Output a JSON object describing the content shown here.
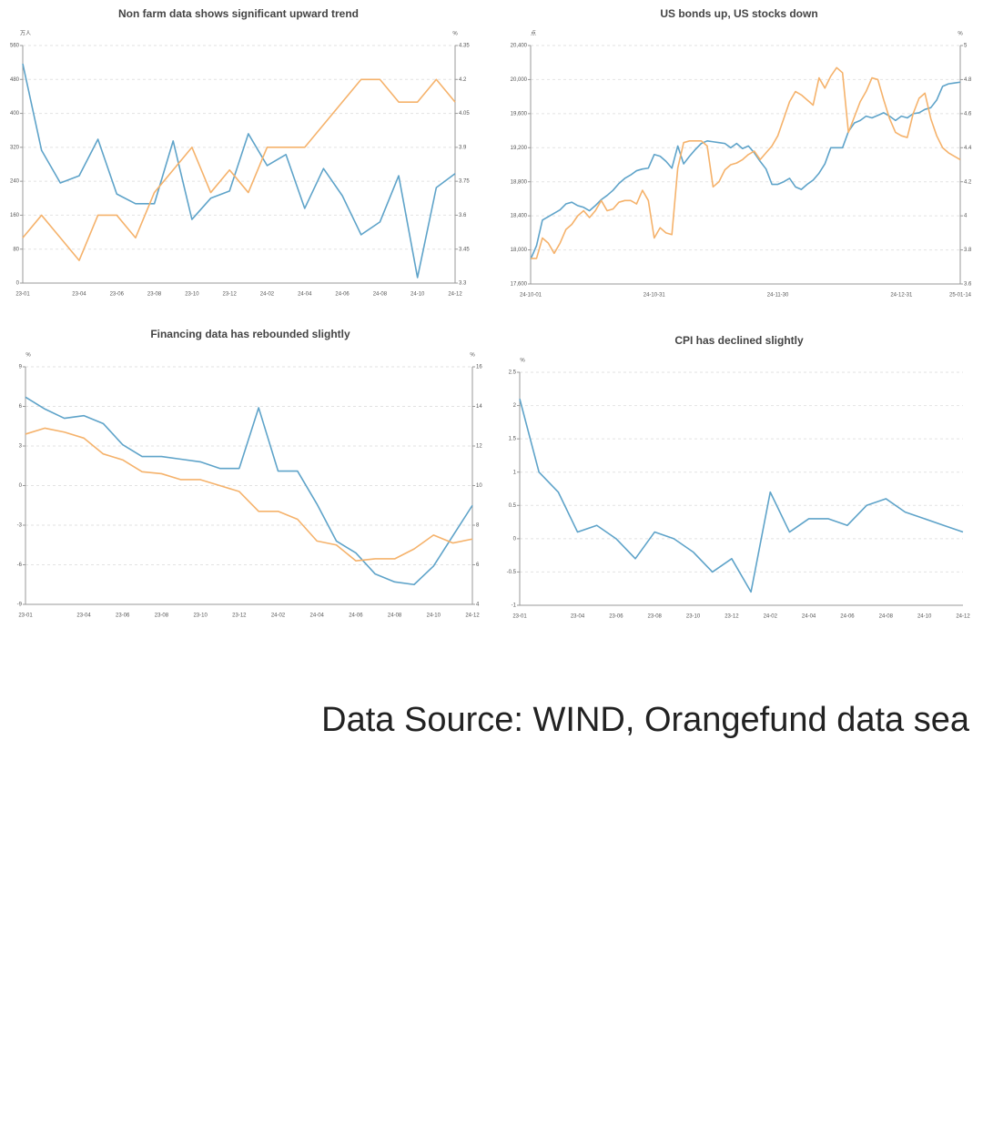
{
  "chart_data": [
    {
      "type": "line",
      "title": "Non farm data shows significant upward trend",
      "y_unit": "万人",
      "y2_unit": "%",
      "categories": [
        "23-01",
        null,
        null,
        "23-04",
        null,
        "23-06",
        null,
        "23-08",
        null,
        "23-10",
        null,
        "23-12",
        null,
        "24-02",
        null,
        "24-04",
        null,
        "24-06",
        null,
        "24-08",
        null,
        "24-10",
        null,
        "24-12"
      ],
      "series": [
        {
          "color": "#5ea3c9",
          "axis": "y",
          "values": [
            517,
            313,
            236,
            253,
            339,
            210,
            187,
            187,
            335,
            150,
            200,
            217,
            352,
            277,
            303,
            176,
            270,
            206,
            114,
            144,
            253,
            13,
            225,
            258
          ]
        },
        {
          "color": "#f5b26b",
          "axis": "y2",
          "values": [
            3.5,
            3.6,
            3.5,
            3.4,
            3.6,
            3.6,
            3.5,
            3.7,
            3.8,
            3.9,
            3.7,
            3.8,
            3.7,
            3.9,
            3.9,
            3.9,
            4.0,
            4.1,
            4.2,
            4.2,
            4.1,
            4.1,
            4.2,
            4.1
          ]
        }
      ],
      "ylim": [
        0,
        560
      ],
      "yticks": [
        0,
        80,
        160,
        240,
        320,
        400,
        480,
        560
      ],
      "y2lim": [
        3.3,
        4.35
      ],
      "y2ticks": [
        3.3,
        3.45,
        3.6,
        3.75,
        3.9,
        4.05,
        4.2,
        4.35
      ],
      "grid": true
    },
    {
      "type": "line",
      "title": "US bonds up, US stocks down",
      "y_unit": "点",
      "y2_unit": "%",
      "categories": [
        "24-10-01",
        null,
        null,
        null,
        null,
        null,
        null,
        null,
        null,
        null,
        null,
        null,
        null,
        null,
        null,
        null,
        null,
        null,
        null,
        null,
        null,
        "24-10-31",
        null,
        null,
        null,
        null,
        null,
        null,
        null,
        null,
        null,
        null,
        null,
        null,
        null,
        null,
        null,
        null,
        null,
        null,
        null,
        null,
        "24-11-30",
        null,
        null,
        null,
        null,
        null,
        null,
        null,
        null,
        null,
        null,
        null,
        null,
        null,
        null,
        null,
        null,
        null,
        null,
        null,
        null,
        "24-12-31",
        null,
        null,
        null,
        null,
        null,
        null,
        null,
        null,
        null,
        "25-01-14"
      ],
      "series": [
        {
          "color": "#5ea3c9",
          "axis": "y",
          "values": [
            17890,
            18050,
            18350,
            18390,
            18430,
            18470,
            18540,
            18560,
            18520,
            18500,
            18460,
            18520,
            18590,
            18640,
            18700,
            18780,
            18840,
            18880,
            18930,
            18950,
            18960,
            19120,
            19100,
            19040,
            18960,
            19220,
            19010,
            19100,
            19180,
            19250,
            19280,
            19270,
            19260,
            19250,
            19200,
            19250,
            19190,
            19220,
            19140,
            19040,
            18950,
            18770,
            18770,
            18800,
            18840,
            18740,
            18710,
            18770,
            18820,
            18900,
            19010,
            19200,
            19200,
            19200,
            19390,
            19490,
            19520,
            19570,
            19550,
            19580,
            19610,
            19570,
            19520,
            19570,
            19550,
            19600,
            19610,
            19650,
            19670,
            19760,
            19920,
            19950,
            19960,
            19970
          ]
        },
        {
          "color": "#f5b26b",
          "axis": "y2",
          "values": [
            3.75,
            3.75,
            3.87,
            3.84,
            3.78,
            3.84,
            3.92,
            3.95,
            4.0,
            4.03,
            3.99,
            4.03,
            4.09,
            4.03,
            4.04,
            4.08,
            4.09,
            4.09,
            4.07,
            4.15,
            4.09,
            3.87,
            3.93,
            3.9,
            3.89,
            4.28,
            4.43,
            4.44,
            4.44,
            4.44,
            4.41,
            4.17,
            4.2,
            4.27,
            4.3,
            4.31,
            4.33,
            4.36,
            4.38,
            4.33,
            4.37,
            4.41,
            4.47,
            4.57,
            4.67,
            4.73,
            4.71,
            4.68,
            4.65,
            4.81,
            4.75,
            4.82,
            4.87,
            4.84,
            4.49,
            4.58,
            4.67,
            4.73,
            4.81,
            4.8,
            4.68,
            4.57,
            4.49,
            4.47,
            4.46,
            4.6,
            4.69,
            4.72,
            4.57,
            4.47,
            4.4,
            4.37,
            4.35,
            4.33
          ]
        }
      ],
      "ylim": [
        17600,
        20400
      ],
      "yticks": [
        {
          "value": 17600,
          "label": "17,600"
        },
        {
          "value": 18000,
          "label": "18,000"
        },
        {
          "value": 18400,
          "label": "18,400"
        },
        {
          "value": 18800,
          "label": "18,800"
        },
        {
          "value": 19200,
          "label": "19,200"
        },
        {
          "value": 19600,
          "label": "19,600"
        },
        {
          "value": 20000,
          "label": "20,000"
        },
        {
          "value": 20400,
          "label": "20,400"
        }
      ],
      "y2lim": [
        3.6,
        5
      ],
      "y2ticks": [
        3.6,
        3.8,
        4,
        4.2,
        4.4,
        4.6,
        4.8,
        5
      ],
      "grid": true
    },
    {
      "type": "line",
      "title": "Financing data has rebounded slightly",
      "y_unit": "%",
      "y2_unit": "%",
      "categories": [
        "23-01",
        null,
        null,
        "23-04",
        null,
        "23-06",
        null,
        "23-08",
        null,
        "23-10",
        null,
        "23-12",
        null,
        "24-02",
        null,
        "24-04",
        null,
        "24-06",
        null,
        "24-08",
        null,
        "24-10",
        null,
        "24-12"
      ],
      "series": [
        {
          "color": "#5ea3c9",
          "axis": "y",
          "values": [
            6.7,
            5.8,
            5.1,
            5.3,
            4.7,
            3.1,
            2.2,
            2.2,
            2.0,
            1.8,
            1.3,
            1.3,
            5.9,
            1.1,
            1.1,
            -1.4,
            -4.2,
            -5.1,
            -6.7,
            -7.3,
            -7.5,
            -6.1,
            -3.8,
            -1.5
          ]
        },
        {
          "color": "#f5b26b",
          "axis": "y2",
          "values": [
            12.6,
            12.9,
            12.7,
            12.4,
            11.6,
            11.3,
            10.7,
            10.6,
            10.3,
            10.3,
            10.0,
            9.7,
            8.7,
            8.7,
            8.3,
            7.2,
            7.0,
            6.2,
            6.3,
            6.3,
            6.8,
            7.5,
            7.1,
            7.3
          ]
        }
      ],
      "ylim": [
        -9,
        9
      ],
      "yticks": [
        -9,
        -6,
        -3,
        0,
        3,
        6,
        9
      ],
      "y2lim": [
        4,
        16
      ],
      "y2ticks": [
        4,
        6,
        8,
        10,
        12,
        14,
        16
      ],
      "grid": true
    },
    {
      "type": "line",
      "title": "CPI has declined slightly",
      "y_unit": "%",
      "categories": [
        "23-01",
        null,
        null,
        "23-04",
        null,
        "23-06",
        null,
        "23-08",
        null,
        "23-10",
        null,
        "23-12",
        null,
        "24-02",
        null,
        "24-04",
        null,
        "24-06",
        null,
        "24-08",
        null,
        "24-10",
        null,
        "24-12"
      ],
      "series": [
        {
          "color": "#5ea3c9",
          "axis": "y",
          "values": [
            2.1,
            1.0,
            0.7,
            0.1,
            0.2,
            0,
            -0.3,
            0.1,
            0,
            -0.2,
            -0.5,
            -0.3,
            -0.8,
            0.7,
            0.1,
            0.3,
            0.3,
            0.2,
            0.5,
            0.6,
            0.4,
            0.3,
            0.2,
            0.1
          ]
        }
      ],
      "ylim": [
        -1,
        2.5
      ],
      "yticks": [
        -1,
        -0.5,
        0,
        0.5,
        1,
        1.5,
        2,
        2.5
      ],
      "grid": true
    }
  ],
  "source": "Data Source: WIND, Orangefund data sea"
}
